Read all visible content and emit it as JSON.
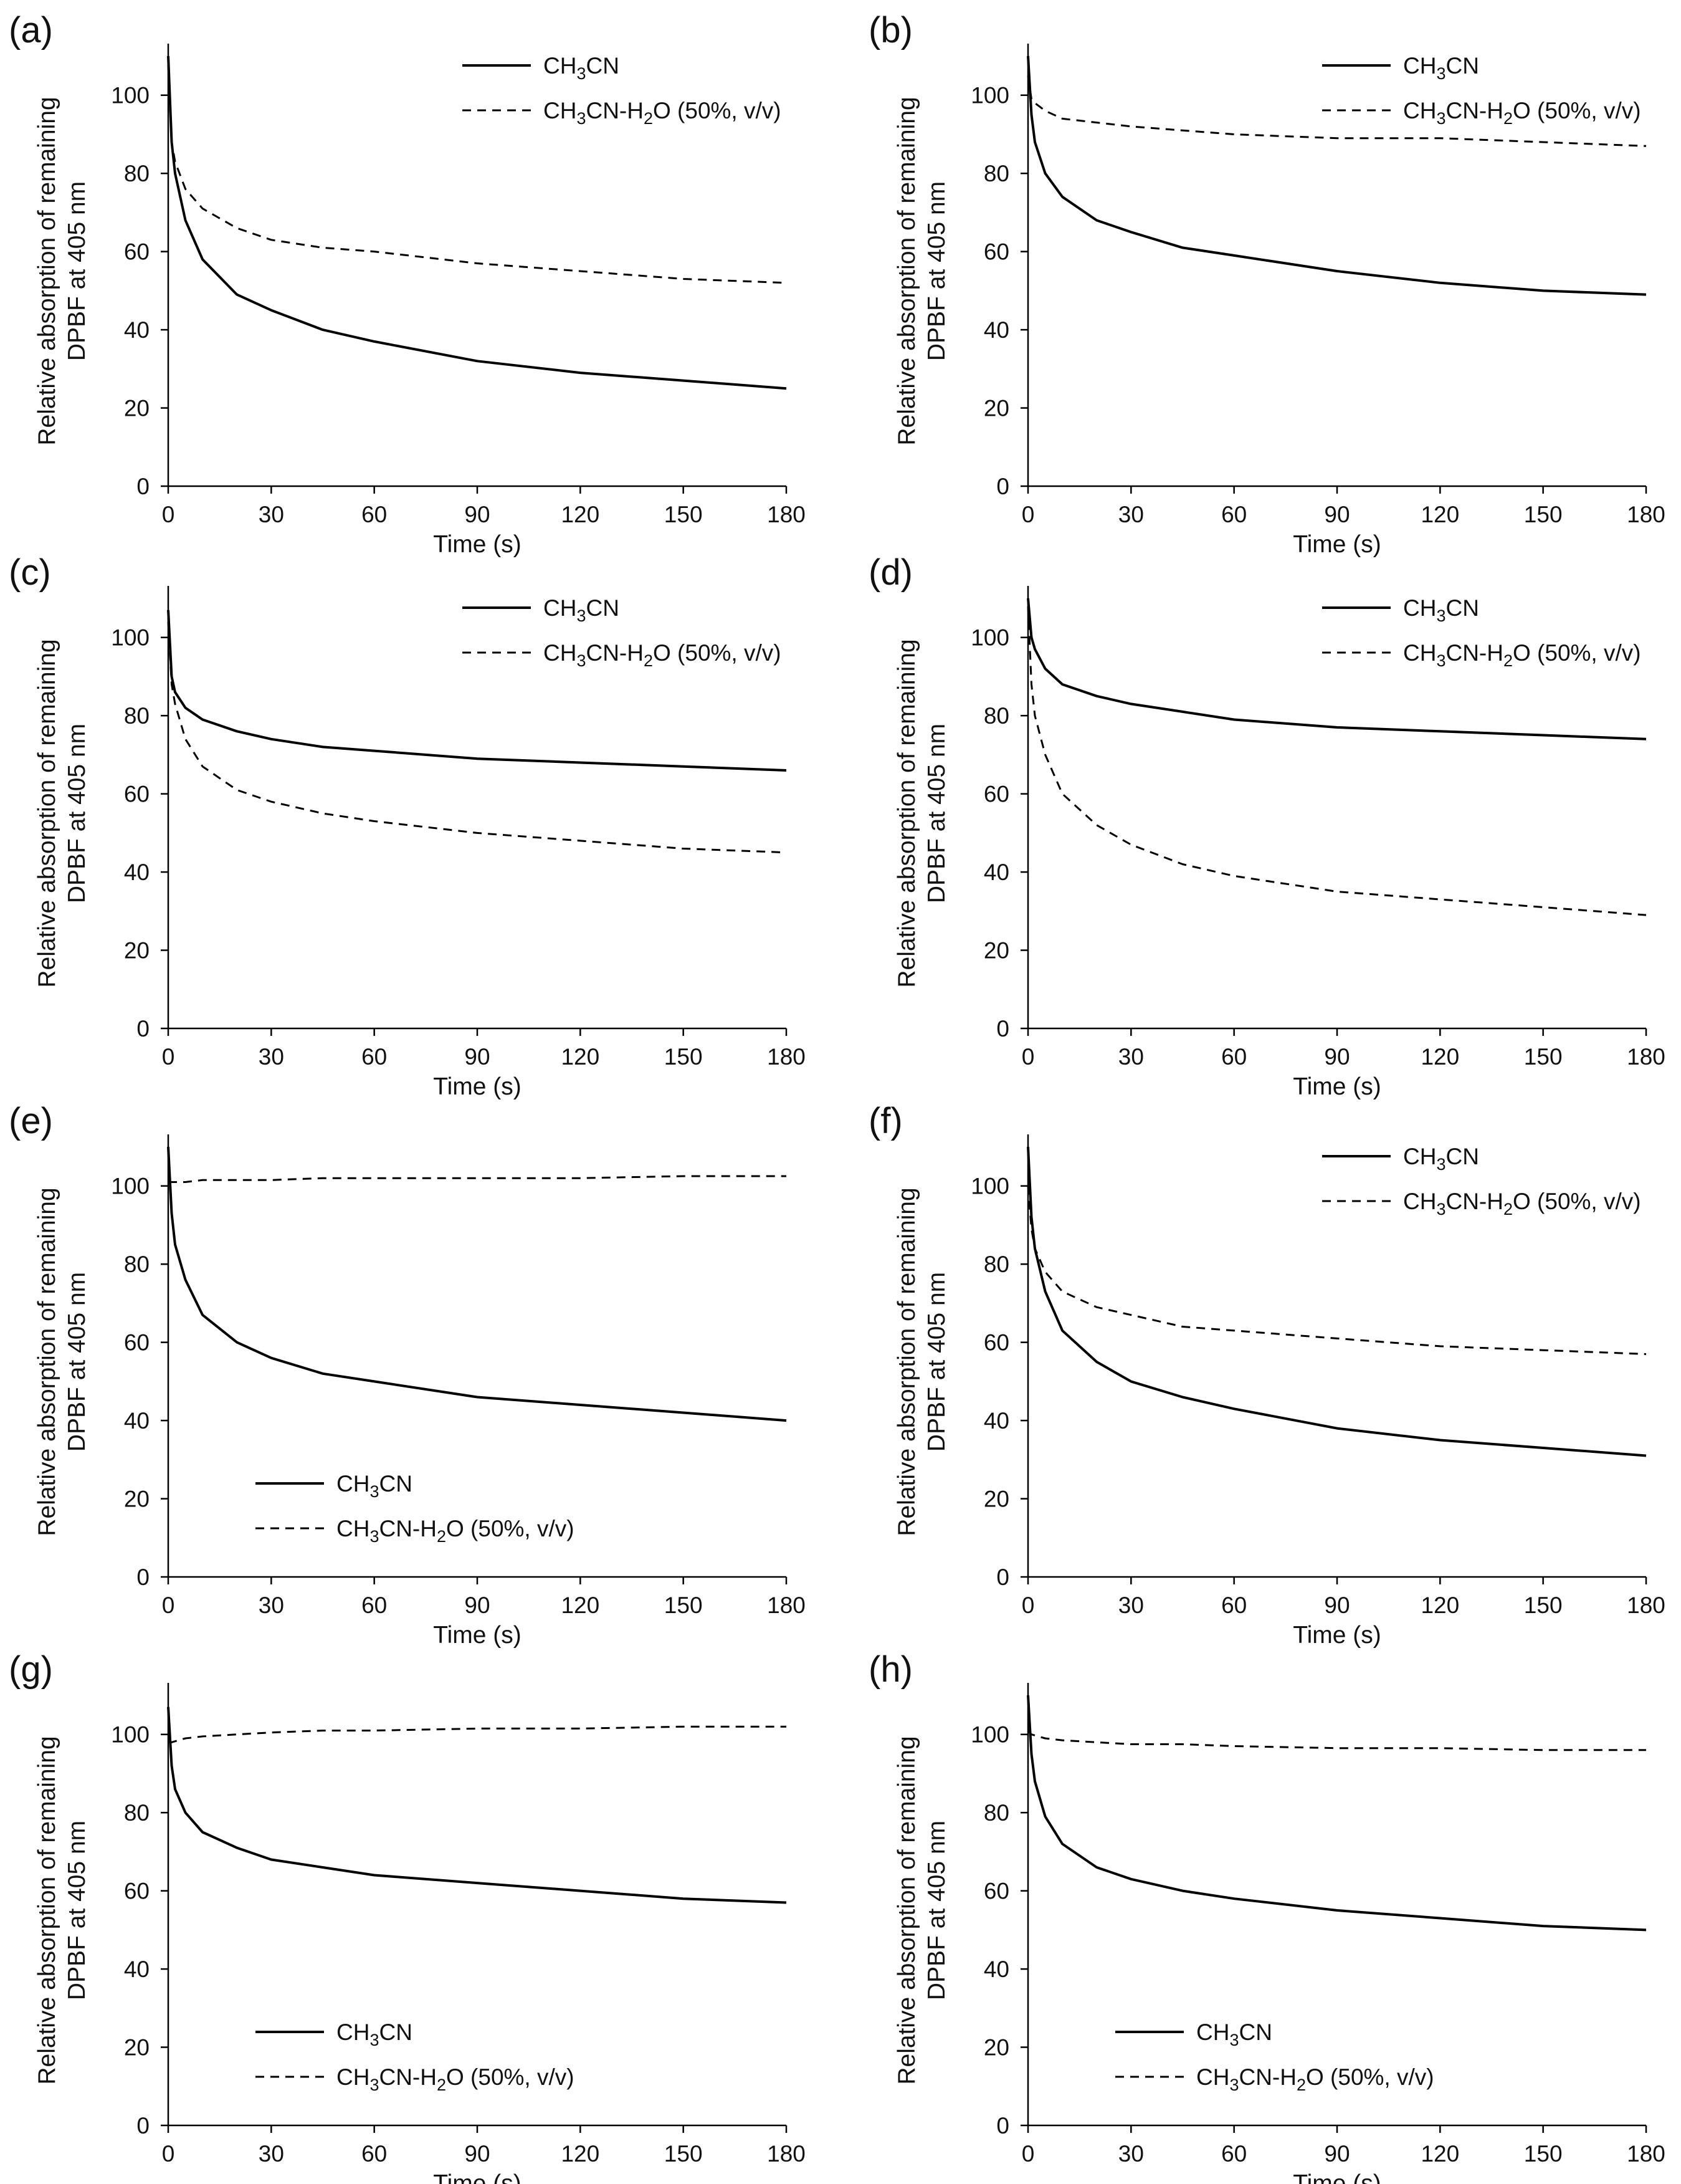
{
  "figure": {
    "series_names": [
      "CH3CN",
      "CH3CN-H2O (50%, v/v)"
    ],
    "legend_label_parts": [
      [
        "CH",
        "3",
        "CN"
      ],
      [
        "CH",
        "3",
        "CN-H",
        "2",
        "O (50%, v/v)"
      ]
    ],
    "colors": {
      "line": "#000000",
      "axis": "#000000",
      "background": "#ffffff"
    }
  },
  "chart_data": [
    {
      "type": "line",
      "panel_label": "(a)",
      "xlabel": "Time (s)",
      "ylabel": "Relative absorption of remaining",
      "ylabel2": "DPBF at 405 nm",
      "xlim": [
        0,
        180
      ],
      "ylim": [
        0,
        110
      ],
      "xticks": [
        0,
        30,
        60,
        90,
        120,
        150,
        180
      ],
      "yticks": [
        0,
        20,
        40,
        60,
        80,
        100
      ],
      "legend_position": "top-right",
      "series": [
        {
          "name": "CH3CN",
          "style": "solid",
          "x": [
            0,
            1,
            2,
            5,
            10,
            20,
            30,
            45,
            60,
            90,
            120,
            150,
            180
          ],
          "y": [
            110,
            88,
            80,
            68,
            58,
            49,
            45,
            40,
            37,
            32,
            29,
            27,
            25
          ]
        },
        {
          "name": "CH3CN-H2O (50%, v/v)",
          "style": "dashed",
          "x": [
            0,
            1,
            2,
            5,
            10,
            20,
            30,
            45,
            60,
            90,
            120,
            150,
            180
          ],
          "y": [
            108,
            88,
            83,
            76,
            71,
            66,
            63,
            61,
            60,
            57,
            55,
            53,
            52
          ]
        }
      ]
    },
    {
      "type": "line",
      "panel_label": "(b)",
      "xlabel": "Time (s)",
      "ylabel": "Relative absorption of remaining",
      "ylabel2": "DPBF at 405 nm",
      "xlim": [
        0,
        180
      ],
      "ylim": [
        0,
        110
      ],
      "xticks": [
        0,
        30,
        60,
        90,
        120,
        150,
        180
      ],
      "yticks": [
        0,
        20,
        40,
        60,
        80,
        100
      ],
      "legend_position": "top-right",
      "series": [
        {
          "name": "CH3CN",
          "style": "solid",
          "x": [
            0,
            1,
            2,
            5,
            10,
            20,
            30,
            45,
            60,
            90,
            120,
            150,
            180
          ],
          "y": [
            110,
            95,
            88,
            80,
            74,
            68,
            65,
            61,
            59,
            55,
            52,
            50,
            49
          ]
        },
        {
          "name": "CH3CN-H2O (50%, v/v)",
          "style": "dashed",
          "x": [
            0,
            1,
            2,
            5,
            10,
            20,
            30,
            45,
            60,
            90,
            120,
            150,
            180
          ],
          "y": [
            105,
            99,
            98,
            96,
            94,
            93,
            92,
            91,
            90,
            89,
            89,
            88,
            87
          ]
        }
      ]
    },
    {
      "type": "line",
      "panel_label": "(c)",
      "xlabel": "Time (s)",
      "ylabel": "Relative absorption of remaining",
      "ylabel2": "DPBF at 405 nm",
      "xlim": [
        0,
        180
      ],
      "ylim": [
        0,
        110
      ],
      "xticks": [
        0,
        30,
        60,
        90,
        120,
        150,
        180
      ],
      "yticks": [
        0,
        20,
        40,
        60,
        80,
        100
      ],
      "legend_position": "top-right",
      "series": [
        {
          "name": "CH3CN",
          "style": "solid",
          "x": [
            0,
            1,
            2,
            5,
            10,
            20,
            30,
            45,
            60,
            90,
            120,
            150,
            180
          ],
          "y": [
            107,
            90,
            86,
            82,
            79,
            76,
            74,
            72,
            71,
            69,
            68,
            67,
            66
          ]
        },
        {
          "name": "CH3CN-H2O (50%, v/v)",
          "style": "dashed",
          "x": [
            0,
            1,
            2,
            5,
            10,
            20,
            30,
            45,
            60,
            90,
            120,
            150,
            180
          ],
          "y": [
            104,
            88,
            83,
            74,
            67,
            61,
            58,
            55,
            53,
            50,
            48,
            46,
            45
          ]
        }
      ]
    },
    {
      "type": "line",
      "panel_label": "(d)",
      "xlabel": "Time (s)",
      "ylabel": "Relative absorption of remaining",
      "ylabel2": "DPBF at 405 nm",
      "xlim": [
        0,
        180
      ],
      "ylim": [
        0,
        110
      ],
      "xticks": [
        0,
        30,
        60,
        90,
        120,
        150,
        180
      ],
      "yticks": [
        0,
        20,
        40,
        60,
        80,
        100
      ],
      "legend_position": "top-right",
      "series": [
        {
          "name": "CH3CN",
          "style": "solid",
          "x": [
            0,
            1,
            2,
            5,
            10,
            20,
            30,
            45,
            60,
            90,
            120,
            150,
            180
          ],
          "y": [
            110,
            100,
            97,
            92,
            88,
            85,
            83,
            81,
            79,
            77,
            76,
            75,
            74
          ]
        },
        {
          "name": "CH3CN-H2O (50%, v/v)",
          "style": "dashed",
          "x": [
            0,
            1,
            2,
            5,
            10,
            20,
            30,
            45,
            60,
            90,
            120,
            150,
            180
          ],
          "y": [
            108,
            88,
            80,
            70,
            60,
            52,
            47,
            42,
            39,
            35,
            33,
            31,
            29
          ]
        }
      ]
    },
    {
      "type": "line",
      "panel_label": "(e)",
      "xlabel": "Time (s)",
      "ylabel": "Relative absorption of remaining",
      "ylabel2": "DPBF at 405 nm",
      "xlim": [
        0,
        180
      ],
      "ylim": [
        0,
        110
      ],
      "xticks": [
        0,
        30,
        60,
        90,
        120,
        150,
        180
      ],
      "yticks": [
        0,
        20,
        40,
        60,
        80,
        100
      ],
      "legend_position": "bottom-left",
      "series": [
        {
          "name": "CH3CN",
          "style": "solid",
          "x": [
            0,
            1,
            2,
            5,
            10,
            20,
            30,
            45,
            60,
            90,
            120,
            150,
            180
          ],
          "y": [
            110,
            93,
            85,
            76,
            67,
            60,
            56,
            52,
            50,
            46,
            44,
            42,
            40
          ]
        },
        {
          "name": "CH3CN-H2O (50%, v/v)",
          "style": "dashed",
          "x": [
            0,
            1,
            5,
            10,
            20,
            30,
            45,
            60,
            90,
            120,
            150,
            180
          ],
          "y": [
            101,
            101,
            101,
            101.5,
            101.5,
            101.5,
            102,
            102,
            102,
            102,
            102.5,
            102.5
          ]
        }
      ]
    },
    {
      "type": "line",
      "panel_label": "(f)",
      "xlabel": "Time (s)",
      "ylabel": "Relative absorption of remaining",
      "ylabel2": "DPBF at 405 nm",
      "xlim": [
        0,
        180
      ],
      "ylim": [
        0,
        110
      ],
      "xticks": [
        0,
        30,
        60,
        90,
        120,
        150,
        180
      ],
      "yticks": [
        0,
        20,
        40,
        60,
        80,
        100
      ],
      "legend_position": "top-right",
      "series": [
        {
          "name": "CH3CN",
          "style": "solid",
          "x": [
            0,
            1,
            2,
            5,
            10,
            20,
            30,
            45,
            60,
            90,
            120,
            150,
            180
          ],
          "y": [
            110,
            92,
            84,
            73,
            63,
            55,
            50,
            46,
            43,
            38,
            35,
            33,
            31
          ]
        },
        {
          "name": "CH3CN-H2O (50%, v/v)",
          "style": "dashed",
          "x": [
            0,
            1,
            2,
            5,
            10,
            20,
            30,
            45,
            60,
            90,
            120,
            150,
            180
          ],
          "y": [
            100,
            89,
            84,
            78,
            73,
            69,
            67,
            64,
            63,
            61,
            59,
            58,
            57
          ]
        }
      ]
    },
    {
      "type": "line",
      "panel_label": "(g)",
      "xlabel": "Time (s)",
      "ylabel": "Relative absorption of remaining",
      "ylabel2": "DPBF at 405 nm",
      "xlim": [
        0,
        180
      ],
      "ylim": [
        0,
        110
      ],
      "xticks": [
        0,
        30,
        60,
        90,
        120,
        150,
        180
      ],
      "yticks": [
        0,
        20,
        40,
        60,
        80,
        100
      ],
      "legend_position": "bottom-left",
      "series": [
        {
          "name": "CH3CN",
          "style": "solid",
          "x": [
            0,
            1,
            2,
            5,
            10,
            20,
            30,
            45,
            60,
            90,
            120,
            150,
            180
          ],
          "y": [
            107,
            92,
            86,
            80,
            75,
            71,
            68,
            66,
            64,
            62,
            60,
            58,
            57
          ]
        },
        {
          "name": "CH3CN-H2O (50%, v/v)",
          "style": "dashed",
          "x": [
            0,
            1,
            5,
            10,
            20,
            30,
            45,
            60,
            90,
            120,
            150,
            180
          ],
          "y": [
            98,
            98,
            99,
            99.5,
            100,
            100.5,
            101,
            101,
            101.5,
            101.5,
            102,
            102
          ]
        }
      ]
    },
    {
      "type": "line",
      "panel_label": "(h)",
      "xlabel": "Time (s)",
      "ylabel": "Relative absorption of remaining",
      "ylabel2": "DPBF at 405 nm",
      "xlim": [
        0,
        180
      ],
      "ylim": [
        0,
        110
      ],
      "xticks": [
        0,
        30,
        60,
        90,
        120,
        150,
        180
      ],
      "yticks": [
        0,
        20,
        40,
        60,
        80,
        100
      ],
      "legend_position": "bottom-left",
      "series": [
        {
          "name": "CH3CN",
          "style": "solid",
          "x": [
            0,
            1,
            2,
            5,
            10,
            20,
            30,
            45,
            60,
            90,
            120,
            150,
            180
          ],
          "y": [
            110,
            95,
            88,
            79,
            72,
            66,
            63,
            60,
            58,
            55,
            53,
            51,
            50
          ]
        },
        {
          "name": "CH3CN-H2O (50%, v/v)",
          "style": "dashed",
          "x": [
            0,
            1,
            5,
            10,
            20,
            30,
            45,
            60,
            90,
            120,
            150,
            180
          ],
          "y": [
            101,
            100,
            99,
            98.5,
            98,
            97.5,
            97.5,
            97,
            96.5,
            96.5,
            96,
            96
          ]
        }
      ]
    }
  ]
}
